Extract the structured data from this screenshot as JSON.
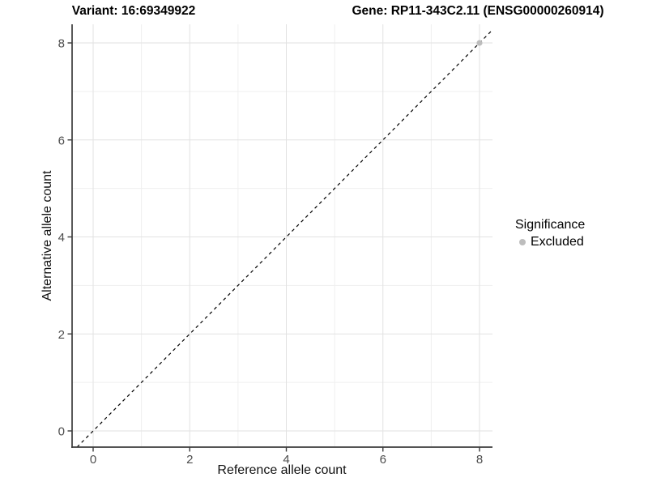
{
  "chart_data": {
    "type": "scatter",
    "title_left": "Variant: 16:69349922",
    "title_right": "Gene: RP11-343C2.11 (ENSG00000260914)",
    "xlabel": "Reference allele count",
    "ylabel": "Alternative allele count",
    "xlim": [
      -0.44,
      8.27
    ],
    "ylim": [
      -0.33,
      8.38
    ],
    "x_ticks": [
      0,
      2,
      4,
      6,
      8
    ],
    "y_ticks": [
      0,
      2,
      4,
      6,
      8
    ],
    "x_minor_ticks": [
      1,
      3,
      5,
      7
    ],
    "y_minor_ticks": [
      1,
      3,
      5,
      7
    ],
    "grid": true,
    "reference_line": {
      "kind": "identity",
      "slope": 1,
      "intercept": 0,
      "style": "dashed",
      "color": "#000000"
    },
    "series": [
      {
        "name": "Excluded",
        "color": "#bdbdbd",
        "points": [
          {
            "x": 8,
            "y": 8
          }
        ]
      }
    ],
    "legend": {
      "title": "Significance",
      "position": "right",
      "entries": [
        {
          "label": "Excluded",
          "color": "#bdbdbd",
          "marker": "dot"
        }
      ]
    }
  },
  "colors": {
    "background": "#ffffff",
    "grid_major": "#e2e2e2",
    "grid_minor": "#efefef",
    "axis_line": "#3c3c3c",
    "tick_label": "#4d4d4d",
    "point": "#bdbdbd"
  }
}
